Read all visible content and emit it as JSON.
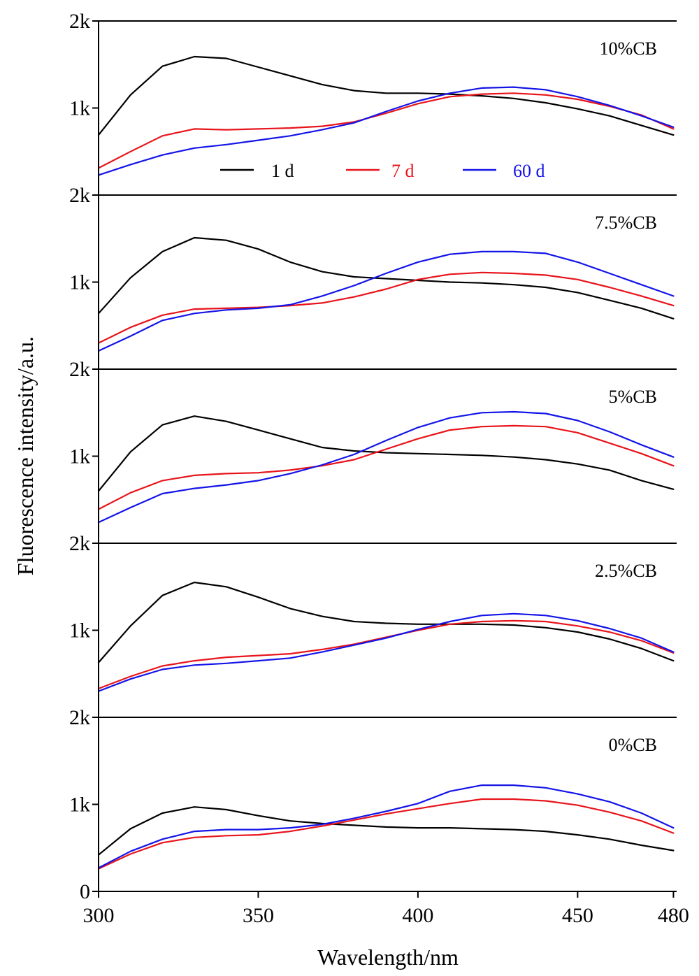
{
  "chart_data": {
    "type": "line",
    "title": "",
    "xlabel": "Wavelength/nm",
    "ylabel": "Fluorescence intensity/a.u.",
    "xlim": [
      300,
      481
    ],
    "x_ticks": [
      "300",
      "350",
      "400",
      "450",
      "480"
    ],
    "y_ticks_per_panel": [
      "0",
      "1k",
      "2k"
    ],
    "ylim": [
      0,
      2000
    ],
    "grid": false,
    "legend": {
      "placement": "inside top panel, below curves",
      "entries": [
        {
          "label": "1 d",
          "color": "#000000"
        },
        {
          "label": "7 d",
          "color": "#e8141b"
        },
        {
          "label": "60 d",
          "color": "#1414e8"
        }
      ]
    },
    "panels": [
      {
        "label": "10%CB",
        "x": [
          300,
          310,
          320,
          330,
          340,
          350,
          360,
          370,
          380,
          390,
          400,
          410,
          420,
          430,
          440,
          450,
          460,
          470,
          480
        ],
        "series": [
          {
            "name": "1 d",
            "values": [
              690,
              1150,
              1480,
              1590,
              1570,
              1470,
              1370,
              1270,
              1200,
              1170,
              1170,
              1160,
              1140,
              1110,
              1060,
              990,
              910,
              800,
              690
            ]
          },
          {
            "name": "7 d",
            "values": [
              310,
              500,
              680,
              760,
              750,
              760,
              770,
              790,
              840,
              940,
              1050,
              1130,
              1160,
              1170,
              1150,
              1100,
              1020,
              920,
              760
            ]
          },
          {
            "name": "60 d",
            "values": [
              230,
              350,
              460,
              540,
              580,
              630,
              680,
              750,
              830,
              960,
              1080,
              1170,
              1230,
              1240,
              1210,
              1130,
              1030,
              910,
              780
            ]
          }
        ]
      },
      {
        "label": "7.5%CB",
        "x": [
          300,
          310,
          320,
          330,
          340,
          350,
          360,
          370,
          380,
          390,
          400,
          410,
          420,
          430,
          440,
          450,
          460,
          470,
          480
        ],
        "series": [
          {
            "name": "1 d",
            "values": [
              640,
              1050,
              1350,
              1510,
              1480,
              1380,
              1230,
              1120,
              1060,
              1040,
              1020,
              1000,
              990,
              970,
              940,
              880,
              790,
              700,
              580
            ]
          },
          {
            "name": "7 d",
            "values": [
              300,
              480,
              620,
              690,
              700,
              710,
              730,
              760,
              830,
              920,
              1030,
              1090,
              1110,
              1100,
              1080,
              1030,
              940,
              840,
              730
            ]
          },
          {
            "name": "60 d",
            "values": [
              210,
              380,
              560,
              640,
              680,
              700,
              740,
              840,
              960,
              1100,
              1230,
              1320,
              1350,
              1350,
              1330,
              1230,
              1100,
              970,
              840
            ]
          }
        ]
      },
      {
        "label": "5%CB",
        "x": [
          300,
          310,
          320,
          330,
          340,
          350,
          360,
          370,
          380,
          390,
          400,
          410,
          420,
          430,
          440,
          450,
          460,
          470,
          480
        ],
        "series": [
          {
            "name": "1 d",
            "values": [
              600,
              1050,
              1360,
              1460,
              1400,
              1300,
              1200,
              1100,
              1060,
              1040,
              1030,
              1020,
              1010,
              990,
              960,
              910,
              840,
              720,
              620
            ]
          },
          {
            "name": "7 d",
            "values": [
              390,
              580,
              720,
              780,
              800,
              810,
              840,
              890,
              960,
              1080,
              1200,
              1300,
              1340,
              1350,
              1340,
              1270,
              1150,
              1030,
              890
            ]
          },
          {
            "name": "60 d",
            "values": [
              240,
              410,
              570,
              630,
              670,
              720,
              800,
              900,
              1020,
              1180,
              1330,
              1440,
              1500,
              1510,
              1490,
              1410,
              1280,
              1130,
              990
            ]
          }
        ]
      },
      {
        "label": "2.5%CB",
        "x": [
          300,
          310,
          320,
          330,
          340,
          350,
          360,
          370,
          380,
          390,
          400,
          410,
          420,
          430,
          440,
          450,
          460,
          470,
          480
        ],
        "series": [
          {
            "name": "1 d",
            "values": [
              630,
              1050,
              1400,
              1550,
              1500,
              1380,
              1250,
              1160,
              1100,
              1080,
              1070,
              1070,
              1070,
              1060,
              1030,
              980,
              900,
              790,
              650
            ]
          },
          {
            "name": "7 d",
            "values": [
              330,
              470,
              590,
              650,
              690,
              710,
              730,
              780,
              840,
              920,
              1000,
              1070,
              1100,
              1110,
              1100,
              1050,
              980,
              880,
              740
            ]
          },
          {
            "name": "60 d",
            "values": [
              300,
              440,
              550,
              600,
              620,
              650,
              680,
              750,
              830,
              910,
              1010,
              1100,
              1170,
              1190,
              1170,
              1110,
              1020,
              910,
              750
            ]
          }
        ]
      },
      {
        "label": "0%CB",
        "x": [
          300,
          310,
          320,
          330,
          340,
          350,
          360,
          370,
          380,
          390,
          400,
          410,
          420,
          430,
          440,
          450,
          460,
          470,
          480
        ],
        "series": [
          {
            "name": "1 d",
            "values": [
              420,
              720,
              900,
              970,
              940,
              870,
              810,
              780,
              760,
              740,
              730,
              730,
              720,
              710,
              690,
              650,
              600,
              530,
              470
            ]
          },
          {
            "name": "7 d",
            "values": [
              260,
              430,
              560,
              620,
              640,
              650,
              690,
              750,
              820,
              890,
              950,
              1010,
              1060,
              1060,
              1040,
              990,
              910,
              810,
              670
            ]
          },
          {
            "name": "60 d",
            "values": [
              270,
              460,
              600,
              690,
              710,
              710,
              730,
              770,
              840,
              920,
              1010,
              1150,
              1220,
              1220,
              1190,
              1120,
              1030,
              900,
              730
            ]
          }
        ]
      }
    ]
  }
}
